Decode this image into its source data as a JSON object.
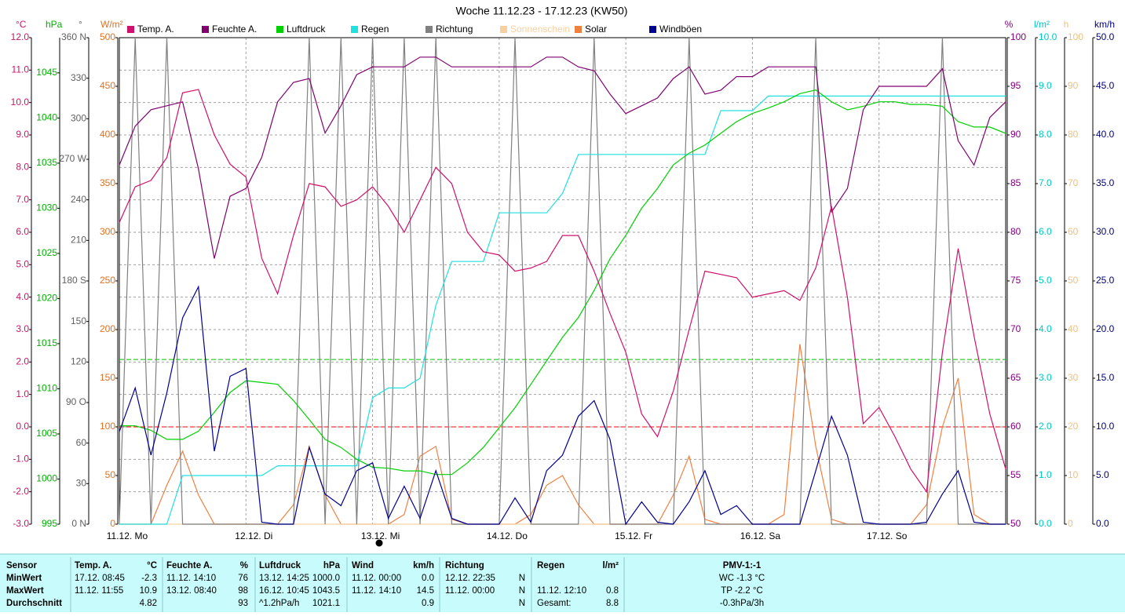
{
  "chart_data": {
    "type": "line",
    "title": "Woche 11.12.23 - 17.12.23 (KW50)",
    "categories": [
      "11.12. Mo",
      null,
      null,
      null,
      null,
      null,
      null,
      null,
      "12.12. Di",
      null,
      null,
      null,
      null,
      null,
      null,
      null,
      "13.12. Mi",
      null,
      null,
      null,
      null,
      null,
      null,
      null,
      "14.12. Do",
      null,
      null,
      null,
      null,
      null,
      null,
      null,
      "15.12. Fr",
      null,
      null,
      null,
      null,
      null,
      null,
      null,
      "16.12. Sa",
      null,
      null,
      null,
      null,
      null,
      null,
      null,
      "17.12. So",
      null,
      null,
      null,
      null,
      null,
      null,
      null,
      null
    ],
    "axes": [
      {
        "unit": "°C",
        "color": "#d0106a",
        "side": "left",
        "lim": [
          -3,
          12
        ],
        "grid": true,
        "ticks": [
          {
            "value": -3,
            "label": "-3.0"
          },
          {
            "value": -2,
            "label": "-2.0"
          },
          {
            "value": -1,
            "label": "-1.0"
          },
          {
            "value": 0,
            "label": "0.0"
          },
          {
            "value": 1,
            "label": "1.0"
          },
          {
            "value": 2,
            "label": "2.0"
          },
          {
            "value": 3,
            "label": "3.0"
          },
          {
            "value": 4,
            "label": "4.0"
          },
          {
            "value": 5,
            "label": "5.0"
          },
          {
            "value": 6,
            "label": "6.0"
          },
          {
            "value": 7,
            "label": "7.0"
          },
          {
            "value": 8,
            "label": "8.0"
          },
          {
            "value": 9,
            "label": "9.0"
          },
          {
            "value": 10,
            "label": "10.0"
          },
          {
            "value": 11,
            "label": "11.0"
          },
          {
            "value": 12,
            "label": "12.0"
          }
        ]
      },
      {
        "unit": "hPa",
        "color": "#00b000",
        "side": "left",
        "lim": [
          995,
          1048.9
        ],
        "ticks": [
          995,
          1000,
          1005,
          1010,
          1015,
          1020,
          1025,
          1030,
          1035,
          1040,
          1045
        ]
      },
      {
        "unit": "°",
        "color": "#606060",
        "side": "left",
        "lim": [
          0,
          360
        ],
        "ticks": [
          {
            "value": 0,
            "label": "0 N"
          },
          30,
          60,
          {
            "value": 90,
            "label": "90 O"
          },
          120,
          150,
          {
            "value": 180,
            "label": "180 S"
          },
          210,
          240,
          {
            "value": 270,
            "label": "270 W"
          },
          300,
          330,
          {
            "value": 360,
            "label": "360 N"
          }
        ]
      },
      {
        "unit": "W/m²",
        "color": "#e07020",
        "side": "left",
        "lim": [
          0,
          500
        ],
        "ticks": [
          0,
          50,
          100,
          150,
          200,
          250,
          300,
          350,
          400,
          450,
          500
        ]
      },
      {
        "unit": "%",
        "color": "#800080",
        "side": "right",
        "lim": [
          50,
          100
        ],
        "ticks": [
          50,
          55,
          60,
          65,
          70,
          75,
          80,
          85,
          90,
          95,
          100
        ]
      },
      {
        "unit": "l/m²",
        "color": "#00c8c8",
        "side": "right",
        "lim": [
          0,
          10
        ],
        "ticks": [
          {
            "value": 0,
            "label": "0.0"
          },
          {
            "value": 1,
            "label": "1.0"
          },
          {
            "value": 2,
            "label": "2.0"
          },
          {
            "value": 3,
            "label": "3.0"
          },
          {
            "value": 4,
            "label": "4.0"
          },
          {
            "value": 5,
            "label": "5.0"
          },
          {
            "value": 6,
            "label": "6.0"
          },
          {
            "value": 7,
            "label": "7.0"
          },
          {
            "value": 8,
            "label": "8.0"
          },
          {
            "value": 9,
            "label": "9.0"
          },
          {
            "value": 10,
            "label": "10.0"
          }
        ]
      },
      {
        "unit": "h",
        "color": "#f0c080",
        "side": "right",
        "lim": [
          0,
          100
        ],
        "ticks": [
          0,
          10,
          20,
          30,
          40,
          50,
          60,
          70,
          80,
          90,
          100
        ]
      },
      {
        "unit": "km/h",
        "color": "#000080",
        "side": "right",
        "lim": [
          0,
          50
        ],
        "ticks": [
          {
            "value": 0,
            "label": "0.0"
          },
          {
            "value": 5,
            "label": "5.0"
          },
          {
            "value": 10,
            "label": "10.0"
          },
          {
            "value": 15,
            "label": "15.0"
          },
          {
            "value": 20,
            "label": "20.0"
          },
          {
            "value": 25,
            "label": "25.0"
          },
          {
            "value": 30,
            "label": "30.0"
          },
          {
            "value": 35,
            "label": "35.0"
          },
          {
            "value": 40,
            "label": "40.0"
          },
          {
            "value": 45,
            "label": "45.0"
          },
          {
            "value": 50,
            "label": "50.0"
          }
        ]
      }
    ],
    "reference_lines": [
      {
        "axis": 0,
        "value": 0,
        "color": "#ff0000"
      },
      {
        "axis": 1,
        "value": 1013.25,
        "color": "#00c000"
      }
    ],
    "series": [
      {
        "name": "Temp. A.",
        "color": "#d0106a",
        "axis": 0,
        "values": [
          6.3,
          7.4,
          7.6,
          8.3,
          10.3,
          10.4,
          9.0,
          8.1,
          7.7,
          5.2,
          4.1,
          5.9,
          7.5,
          7.4,
          6.8,
          7.0,
          7.4,
          6.8,
          6.0,
          7.0,
          8.0,
          7.5,
          6.0,
          5.4,
          5.3,
          4.8,
          4.9,
          5.1,
          5.9,
          5.9,
          4.8,
          3.5,
          2.3,
          0.4,
          -0.3,
          1.1,
          3.0,
          4.8,
          4.7,
          4.6,
          4.0,
          4.1,
          4.2,
          3.9,
          4.9,
          6.8,
          4.0,
          0.1,
          0.6,
          -0.3,
          -1.3,
          -2.0,
          2.3,
          5.5,
          2.8,
          0.4,
          -1.3
        ]
      },
      {
        "name": "Feuchte A.",
        "color": "#800070",
        "axis": 4,
        "values": [
          86.9,
          90.9,
          92.6,
          93.0,
          93.4,
          86.5,
          77.3,
          83.7,
          84.5,
          87.7,
          93.4,
          95.4,
          95.8,
          90.2,
          93.0,
          96.2,
          97.0,
          97.0,
          97.0,
          98.0,
          98.0,
          97.0,
          97.0,
          97.0,
          97.0,
          97.0,
          97.0,
          98.0,
          98.0,
          97.0,
          96.6,
          94.2,
          92.2,
          93.0,
          93.8,
          95.8,
          97.0,
          94.2,
          94.6,
          96.0,
          96.0,
          97.0,
          97.0,
          97.0,
          97.0,
          82.1,
          84.5,
          92.6,
          95.0,
          95.0,
          95.0,
          95.0,
          96.8,
          89.4,
          86.9,
          91.8,
          93.4
        ]
      },
      {
        "name": "Luftdruck",
        "color": "#00d000",
        "axis": 1,
        "values": [
          1005.9,
          1005.9,
          1005.4,
          1004.4,
          1004.4,
          1005.3,
          1007.4,
          1009.6,
          1010.9,
          1010.7,
          1010.5,
          1008.7,
          1006.6,
          1004.4,
          1003.5,
          1002.2,
          1001.3,
          1001.2,
          1000.9,
          1000.9,
          1000.5,
          1000.5,
          1001.8,
          1003.5,
          1005.7,
          1007.9,
          1010.5,
          1013.1,
          1015.7,
          1017.9,
          1020.9,
          1024.4,
          1027.0,
          1030.0,
          1032.2,
          1034.8,
          1036.1,
          1037.0,
          1038.3,
          1039.6,
          1040.5,
          1041.1,
          1041.8,
          1042.7,
          1043.1,
          1041.8,
          1040.9,
          1041.3,
          1041.8,
          1041.8,
          1041.5,
          1041.5,
          1041.3,
          1039.6,
          1039.0,
          1039.0,
          1038.3
        ]
      },
      {
        "name": "Regen",
        "color": "#20e0e0",
        "axis": 5,
        "values": [
          0,
          0,
          0,
          0,
          1.0,
          1.0,
          1.0,
          1.0,
          1.0,
          1.0,
          1.2,
          1.2,
          1.2,
          1.2,
          1.2,
          1.2,
          2.6,
          2.8,
          2.8,
          3.0,
          4.5,
          5.4,
          5.4,
          5.4,
          6.4,
          6.4,
          6.4,
          6.4,
          6.8,
          7.6,
          7.6,
          7.6,
          7.6,
          7.6,
          7.6,
          7.6,
          7.6,
          7.6,
          8.5,
          8.5,
          8.5,
          8.8,
          8.8,
          8.8,
          8.8,
          8.8,
          8.8,
          8.8,
          8.8,
          8.8,
          8.8,
          8.8,
          8.8,
          8.8,
          8.8,
          8.8,
          8.8
        ]
      },
      {
        "name": "Richtung",
        "color": "#808080",
        "axis": 2,
        "values": [
          0,
          360,
          0,
          360,
          0,
          0,
          0,
          0,
          0,
          0,
          0,
          0,
          360,
          0,
          360,
          0,
          360,
          0,
          360,
          0,
          360,
          0,
          0,
          0,
          0,
          360,
          0,
          0,
          0,
          0,
          360,
          0,
          0,
          0,
          0,
          0,
          360,
          0,
          0,
          0,
          0,
          0,
          0,
          0,
          360,
          0,
          0,
          0,
          0,
          0,
          0,
          0,
          360,
          0,
          0,
          0,
          0
        ]
      },
      {
        "name": "Sonnenschein",
        "color": "#f8d0a0",
        "axis": 6,
        "values": [
          0,
          0,
          0,
          0,
          0,
          0,
          0,
          0,
          0,
          0,
          0,
          0,
          0,
          0,
          0,
          0,
          0,
          0,
          0,
          0,
          0,
          0,
          0,
          0,
          0,
          0,
          0,
          0,
          0,
          0,
          0,
          0,
          0,
          0,
          0,
          0,
          0,
          0,
          0,
          0,
          0,
          0,
          0,
          0,
          0,
          0,
          0,
          0,
          0,
          0,
          0,
          0,
          0,
          0,
          0,
          0,
          0
        ]
      },
      {
        "name": "Solar",
        "color": "#f08040",
        "axis": 3,
        "values": [
          0,
          0,
          0,
          40,
          75,
          30,
          0,
          0,
          0,
          0,
          0,
          20,
          80,
          30,
          0,
          0,
          0,
          0,
          10,
          70,
          80,
          5,
          0,
          0,
          0,
          0,
          10,
          40,
          50,
          20,
          0,
          0,
          0,
          0,
          0,
          30,
          70,
          5,
          0,
          0,
          0,
          0,
          10,
          185,
          80,
          5,
          0,
          0,
          0,
          0,
          0,
          20,
          100,
          150,
          10,
          0,
          0
        ]
      },
      {
        "name": "Windböen",
        "color": "#000090",
        "axis": 7,
        "values": [
          9.5,
          14.0,
          7.1,
          13.5,
          21.2,
          24.4,
          7.5,
          15.2,
          16.0,
          0.2,
          0,
          0,
          7.9,
          3.1,
          1.9,
          5.5,
          6.3,
          0.6,
          3.9,
          0.6,
          5.5,
          0.6,
          0,
          0,
          0,
          2.7,
          0.2,
          5.5,
          7.1,
          11.1,
          12.7,
          8.7,
          0,
          2.3,
          0.2,
          0,
          2.3,
          5.5,
          1.0,
          1.9,
          0,
          0,
          0,
          0,
          5.5,
          11.1,
          7.1,
          0.2,
          0,
          0,
          0,
          0.2,
          3.1,
          5.5,
          0.2,
          0,
          0
        ]
      }
    ]
  },
  "table": {
    "header": [
      "Sensor",
      "Temp. A.",
      "°C",
      "Feuchte A.",
      "%",
      "Luftdruck",
      "hPa",
      "Wind",
      "km/h",
      "Richtung",
      null,
      "Regen",
      "l/m²",
      "PMV-1:-1"
    ],
    "rows": [
      [
        "MinWert",
        "17.12.  08:45",
        "-2.3",
        "11.12.  14:10",
        "76",
        "13.12.  14:25",
        "1000.0",
        "11.12.  00:00",
        "0.0",
        "12.12.  22:35",
        "N",
        null,
        null,
        "WC -1.3 °C"
      ],
      [
        "MaxWert",
        "11.12.  11:55",
        "10.9",
        "13.12.  08:40",
        "98",
        "16.12.  10:45",
        "1043.5",
        "11.12.  14:10",
        "14.5",
        "11.12.  00:00",
        "N",
        "11.12.  12:10",
        "0.8",
        "TP -2.2 °C"
      ],
      [
        "Durchschnitt",
        null,
        "4.82",
        null,
        "93",
        "^1.2hPa/h",
        "1021.1",
        null,
        "0.9",
        null,
        "N",
        "Gesamt:",
        "8.8",
        "-0.3hPa/3h"
      ]
    ]
  }
}
